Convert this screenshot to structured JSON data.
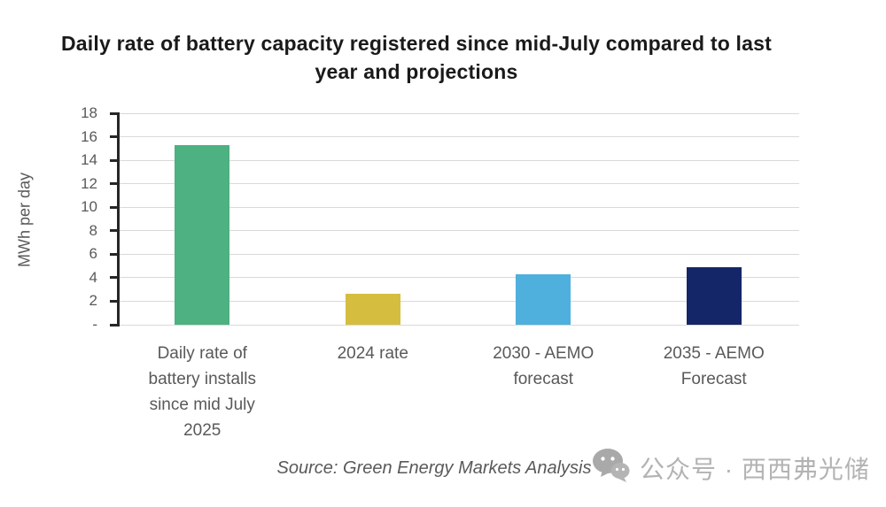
{
  "title": "Daily rate of battery capacity registered since mid-July compared to last year and projections",
  "source_note": "Source: Green Energy Markets Analysis",
  "watermark": {
    "icon": "wechat-icon",
    "text": "公众号 · 西西弗光储"
  },
  "chart_data": {
    "type": "bar",
    "title": "Daily rate of battery capacity registered since mid-July compared to last year and projections",
    "ylabel": "MWh per day",
    "xlabel": "",
    "ylim": [
      0,
      18
    ],
    "grid": true,
    "legend": false,
    "yticks": [
      {
        "value": 18,
        "label": "18"
      },
      {
        "value": 16,
        "label": "16"
      },
      {
        "value": 14,
        "label": "14"
      },
      {
        "value": 12,
        "label": "12"
      },
      {
        "value": 10,
        "label": "10"
      },
      {
        "value": 8,
        "label": "8"
      },
      {
        "value": 6,
        "label": "6"
      },
      {
        "value": 4,
        "label": "4"
      },
      {
        "value": 2,
        "label": "2"
      },
      {
        "value": 0,
        "label": "-"
      }
    ],
    "categories": [
      "Daily rate of\nbattery installs\nsince mid July\n2025",
      "2024 rate",
      "2030 - AEMO\nforecast",
      "2035 - AEMO\nForecast"
    ],
    "values": [
      15.3,
      2.6,
      4.3,
      4.9
    ],
    "bar_colors": [
      "#4db181",
      "#d5bd40",
      "#4fafdd",
      "#142668"
    ],
    "colors": {
      "grid": "#d9d9d9",
      "axis": "#262626",
      "tick_text": "#595959",
      "title_text": "#1a1a1a"
    }
  }
}
